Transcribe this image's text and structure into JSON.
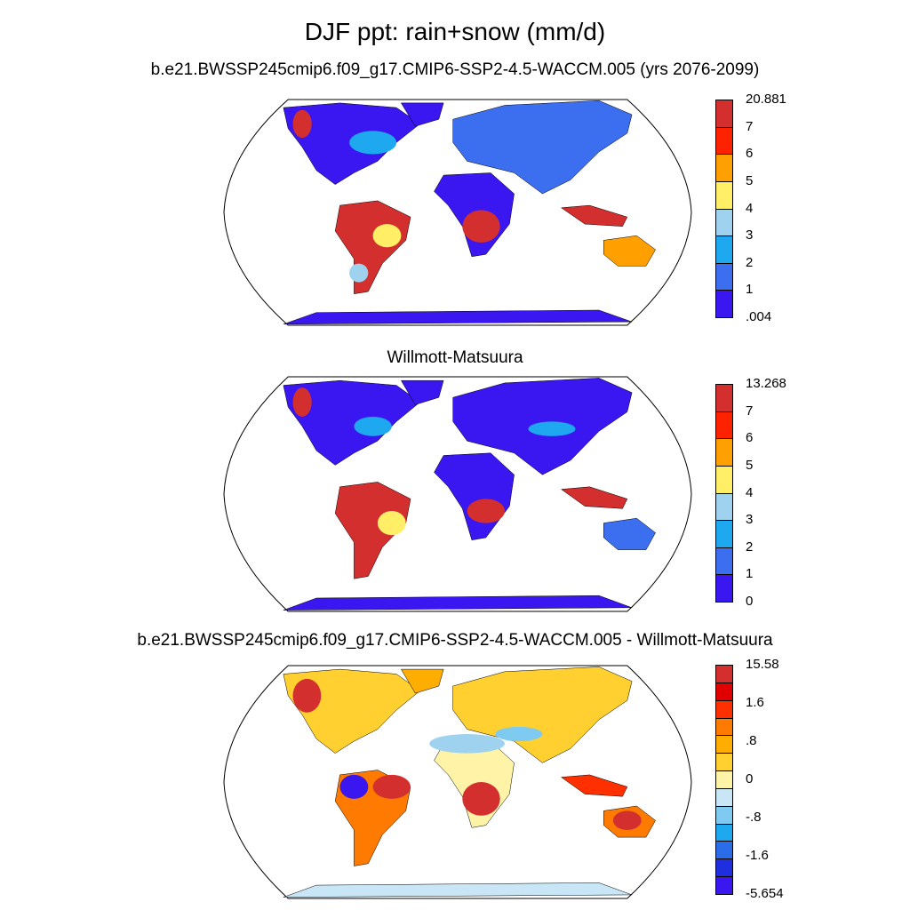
{
  "title": "DJF ppt: rain+snow (mm/d)",
  "panels": [
    {
      "subtitle": "b.e21.BWSSP245cmip6.f09_g17.CMIP6-SSP2-4.5-WACCM.005 (yrs 2076-2099)",
      "colorbar": {
        "labels": [
          "20.881",
          "7",
          "6",
          "5",
          "4",
          "3",
          "2",
          "1",
          ".004"
        ],
        "colors": [
          "#d32f2f",
          "#ff2200",
          "#ffa000",
          "#ffee66",
          "#9fd2ee",
          "#1ea8f0",
          "#3c6ff0",
          "#3a16f0"
        ]
      }
    },
    {
      "subtitle": "Willmott-Matsuura",
      "colorbar": {
        "labels": [
          "13.268",
          "7",
          "6",
          "5",
          "4",
          "3",
          "2",
          "1",
          "0"
        ],
        "colors": [
          "#d32f2f",
          "#ff2200",
          "#ffa000",
          "#ffee66",
          "#9fd2ee",
          "#1ea8f0",
          "#3c6ff0",
          "#3a16f0"
        ]
      }
    },
    {
      "subtitle": "b.e21.BWSSP245cmip6.f09_g17.CMIP6-SSP2-4.5-WACCM.005 - Willmott-Matsuura",
      "colorbar": {
        "labels": [
          "15.58",
          "",
          "1.6",
          "",
          ".8",
          "",
          "0",
          "",
          "-.8",
          "",
          "-1.6",
          "",
          "-5.654"
        ],
        "colors": [
          "#d32f2f",
          "#e00000",
          "#ff3000",
          "#ff7a00",
          "#ffad00",
          "#ffd030",
          "#fff3a8",
          "#c8e6f5",
          "#7fcaf0",
          "#1ea8f0",
          "#2b6de8",
          "#1f2fe0",
          "#3a16f0"
        ]
      }
    }
  ]
}
